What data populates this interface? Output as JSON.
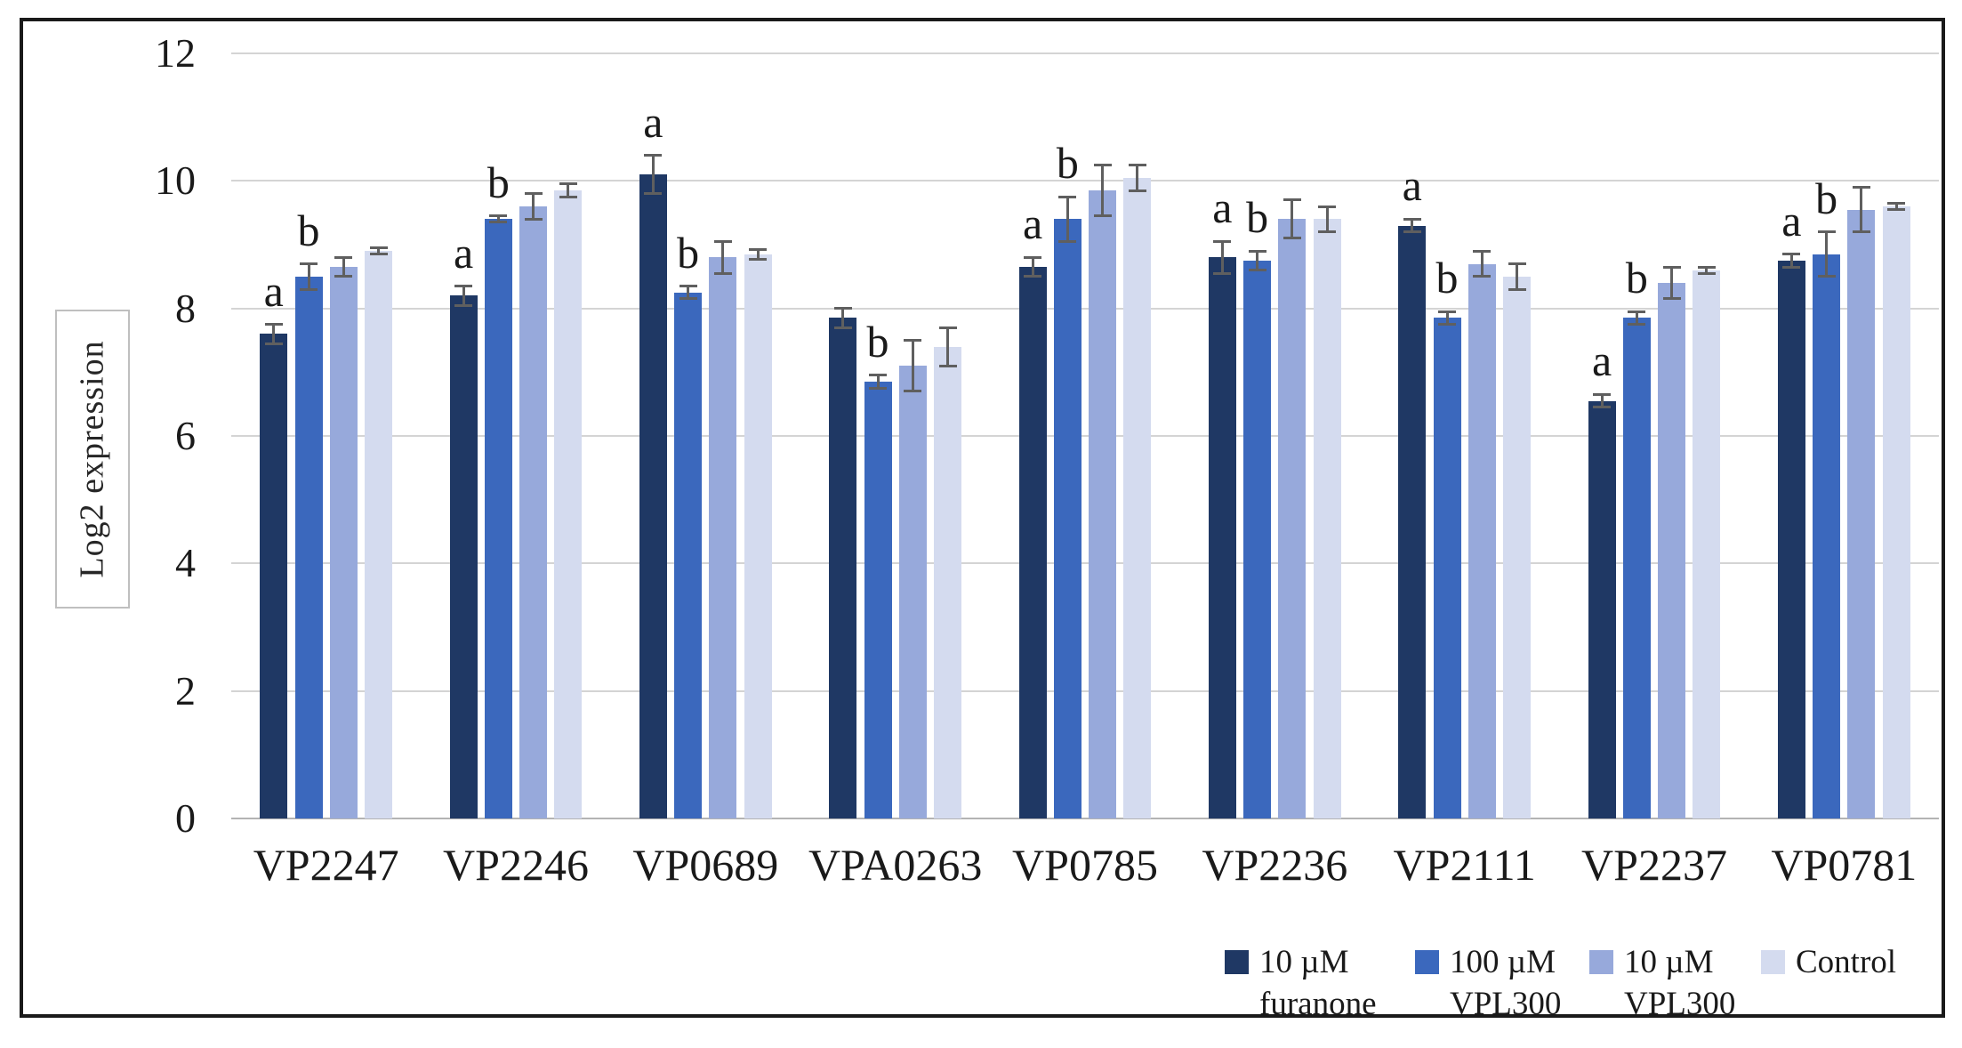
{
  "chart_data": {
    "type": "bar",
    "title": "",
    "xlabel": "",
    "ylabel": "Log2 expression",
    "ylim": [
      0,
      12
    ],
    "yticks": [
      0,
      2,
      4,
      6,
      8,
      10,
      12
    ],
    "grid": true,
    "legend_position": "bottom-right",
    "error_bars": true,
    "categories": [
      "VP2247",
      "VP2246",
      "VP0689",
      "VPA0263",
      "VP0785",
      "VP2236",
      "VP2111",
      "VP2237",
      "VP0781"
    ],
    "series": [
      {
        "name": "10 µM furanone",
        "legend_lines": [
          "10 µM",
          "furanone"
        ],
        "color": "#1F3864",
        "values": [
          7.6,
          8.2,
          10.1,
          7.85,
          8.65,
          8.8,
          9.3,
          6.55,
          8.75
        ],
        "errors": [
          0.15,
          0.15,
          0.3,
          0.15,
          0.15,
          0.25,
          0.1,
          0.1,
          0.1
        ],
        "letters": [
          "a",
          "a",
          "a",
          "",
          "a",
          "a",
          "a",
          "a",
          "a"
        ]
      },
      {
        "name": "100 µM VPL300",
        "legend_lines": [
          "100 µM",
          "VPL300"
        ],
        "color": "#3B68BD",
        "values": [
          8.5,
          9.4,
          8.25,
          6.85,
          9.4,
          8.75,
          7.85,
          7.85,
          8.85
        ],
        "errors": [
          0.2,
          0.05,
          0.1,
          0.1,
          0.35,
          0.15,
          0.1,
          0.1,
          0.35
        ],
        "letters": [
          "b",
          "b",
          "b",
          "b",
          "b",
          "b",
          "b",
          "b",
          "b"
        ]
      },
      {
        "name": "10 µM VPL300",
        "legend_lines": [
          "10 µM",
          "VPL300"
        ],
        "color": "#97A9DB",
        "values": [
          8.65,
          9.6,
          8.8,
          7.1,
          9.85,
          9.4,
          8.7,
          8.4,
          9.55
        ],
        "errors": [
          0.15,
          0.2,
          0.25,
          0.4,
          0.4,
          0.3,
          0.2,
          0.25,
          0.35
        ],
        "letters": [
          "",
          "",
          "",
          "",
          "",
          "",
          "",
          "",
          ""
        ]
      },
      {
        "name": "Control",
        "legend_lines": [
          "Control"
        ],
        "color": "#D4DBEF",
        "values": [
          8.9,
          9.85,
          8.85,
          7.4,
          10.05,
          9.4,
          8.5,
          8.6,
          9.6
        ],
        "errors": [
          0.05,
          0.1,
          0.08,
          0.3,
          0.2,
          0.2,
          0.2,
          0.05,
          0.05
        ],
        "letters": [
          "",
          "",
          "",
          "",
          "",
          "",
          "",
          "",
          ""
        ]
      }
    ]
  }
}
